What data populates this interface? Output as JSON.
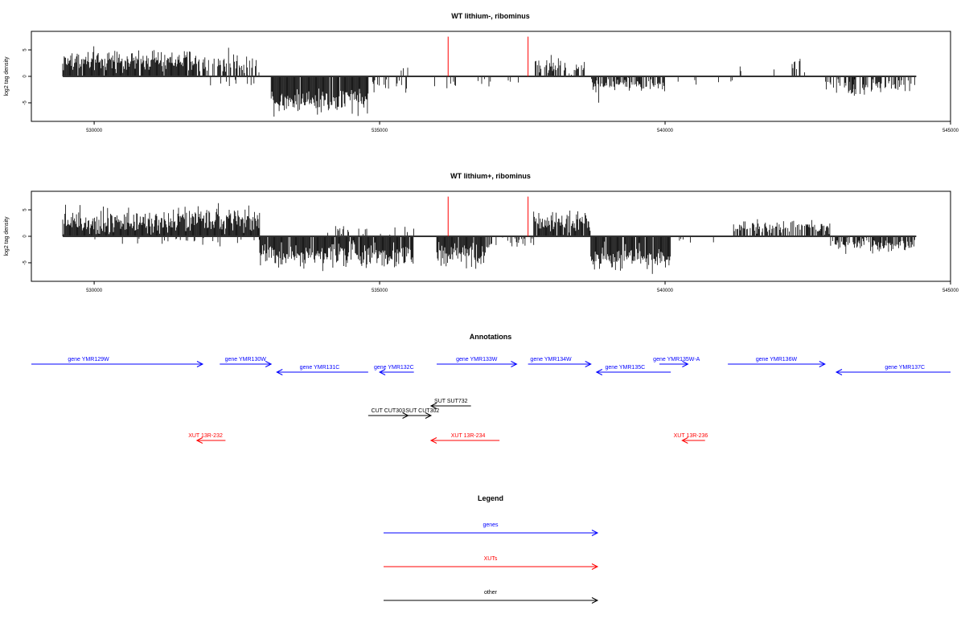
{
  "chart_data": [
    {
      "type": "bar",
      "title": "WT lithium-, ribominus",
      "ylabel": "log2 tag density",
      "xlabel": "",
      "xlim": [
        528900,
        545000
      ],
      "ylim": [
        -8.5,
        8.5
      ],
      "xticks": [
        530000,
        535000,
        540000,
        545000
      ],
      "xtick_labels": [
        "530000",
        "535000",
        "540000",
        "545000"
      ],
      "yticks": [
        -5,
        0,
        5
      ],
      "ytick_labels": [
        "-5",
        "0",
        "5"
      ],
      "baseline_range": [
        529450,
        544400
      ],
      "marker_color": "#ff0000",
      "markers": [
        {
          "x": 536200,
          "y": 7.5
        },
        {
          "x": 537600,
          "y": 7.5
        }
      ],
      "density_profile": [
        {
          "from": 529450,
          "to": 531800,
          "mean": 2.8,
          "spread": 1.5,
          "density": 0.95
        },
        {
          "from": 531800,
          "to": 532100,
          "mean": 2.2,
          "spread": 1.2,
          "density": 0.3
        },
        {
          "from": 532100,
          "to": 532900,
          "mean": 2.4,
          "spread": 1.6,
          "density": 0.45
        },
        {
          "from": 532000,
          "to": 532900,
          "mean": -1.2,
          "spread": 0.6,
          "density": 0.12
        },
        {
          "from": 533100,
          "to": 534800,
          "mean": -4.5,
          "spread": 1.8,
          "density": 0.95
        },
        {
          "from": 534800,
          "to": 535500,
          "mean": -1.8,
          "spread": 1.0,
          "density": 0.25
        },
        {
          "from": 535200,
          "to": 535500,
          "mean": 1.5,
          "spread": 0.8,
          "density": 0.12
        },
        {
          "from": 535900,
          "to": 537000,
          "mean": -1.4,
          "spread": 0.8,
          "density": 0.12
        },
        {
          "from": 537000,
          "to": 537600,
          "mean": -0.9,
          "spread": 0.6,
          "density": 0.06
        },
        {
          "from": 537700,
          "to": 538600,
          "mean": 2.0,
          "spread": 1.2,
          "density": 0.6
        },
        {
          "from": 538700,
          "to": 540000,
          "mean": -1.6,
          "spread": 0.8,
          "density": 0.7
        },
        {
          "from": 538700,
          "to": 538900,
          "mean": -3.5,
          "spread": 1.2,
          "density": 0.3
        },
        {
          "from": 540000,
          "to": 541200,
          "mean": -1.0,
          "spread": 0.5,
          "density": 0.05
        },
        {
          "from": 541200,
          "to": 542700,
          "mean": 1.2,
          "spread": 0.7,
          "density": 0.08
        },
        {
          "from": 542200,
          "to": 542400,
          "mean": 2.5,
          "spread": 0.5,
          "density": 0.2
        },
        {
          "from": 542800,
          "to": 544400,
          "mean": -1.7,
          "spread": 1.0,
          "density": 0.45
        },
        {
          "from": 543200,
          "to": 543500,
          "mean": -3.0,
          "spread": 0.8,
          "density": 0.4
        }
      ]
    },
    {
      "type": "bar",
      "title": "WT lithium+, ribominus",
      "ylabel": "log2 tag density",
      "xlabel": "",
      "xlim": [
        528900,
        545000
      ],
      "ylim": [
        -8.5,
        8.5
      ],
      "xticks": [
        530000,
        535000,
        540000,
        545000
      ],
      "xtick_labels": [
        "530000",
        "535000",
        "540000",
        "545000"
      ],
      "yticks": [
        -5,
        0,
        5
      ],
      "ytick_labels": [
        "-5",
        "0",
        "5"
      ],
      "baseline_range": [
        529450,
        544400
      ],
      "marker_color": "#ff0000",
      "markers": [
        {
          "x": 536200,
          "y": 7.5
        },
        {
          "x": 537600,
          "y": 7.5
        }
      ],
      "density_profile": [
        {
          "from": 529450,
          "to": 532900,
          "mean": 3.0,
          "spread": 1.8,
          "density": 1.0
        },
        {
          "from": 530000,
          "to": 533000,
          "mean": -0.8,
          "spread": 0.6,
          "density": 0.08
        },
        {
          "from": 532900,
          "to": 535600,
          "mean": -3.5,
          "spread": 1.8,
          "density": 0.95
        },
        {
          "from": 534000,
          "to": 535600,
          "mean": 1.2,
          "spread": 0.8,
          "density": 0.2
        },
        {
          "from": 536000,
          "to": 536900,
          "mean": -3.5,
          "spread": 1.6,
          "density": 0.95
        },
        {
          "from": 536900,
          "to": 537700,
          "mean": -1.4,
          "spread": 0.8,
          "density": 0.3
        },
        {
          "from": 537700,
          "to": 538700,
          "mean": 2.8,
          "spread": 1.5,
          "density": 0.9
        },
        {
          "from": 538700,
          "to": 540100,
          "mean": -4.0,
          "spread": 1.8,
          "density": 0.95
        },
        {
          "from": 540100,
          "to": 541200,
          "mean": -1.0,
          "spread": 0.6,
          "density": 0.06
        },
        {
          "from": 541200,
          "to": 542900,
          "mean": 1.8,
          "spread": 1.0,
          "density": 0.65
        },
        {
          "from": 542900,
          "to": 544400,
          "mean": -1.8,
          "spread": 1.0,
          "density": 0.7
        }
      ]
    }
  ],
  "annotations_title": "Annotations",
  "annotations": {
    "xlim": [
      528900,
      545000
    ],
    "features": [
      {
        "label": "gene YMR129W",
        "kind": "gene",
        "start": 528900,
        "end": 531900,
        "strand": "+",
        "row": 0,
        "label_pos": 529900
      },
      {
        "label": "gene YMR130W",
        "kind": "gene",
        "start": 532200,
        "end": 533100,
        "strand": "+",
        "row": 0,
        "label_pos": 532650
      },
      {
        "label": "gene YMR131C",
        "kind": "gene",
        "start": 533200,
        "end": 534800,
        "strand": "-",
        "row": 1,
        "label_pos": 533950
      },
      {
        "label": "gene YMR132C",
        "kind": "gene",
        "start": 535000,
        "end": 535600,
        "strand": "-",
        "row": 1,
        "label_pos": 535250
      },
      {
        "label": "gene YMR133W",
        "kind": "gene",
        "start": 536000,
        "end": 537400,
        "strand": "+",
        "row": 0,
        "label_pos": 536700
      },
      {
        "label": "gene YMR134W",
        "kind": "gene",
        "start": 537600,
        "end": 538700,
        "strand": "+",
        "row": 0,
        "label_pos": 538000
      },
      {
        "label": "gene YMR135C",
        "kind": "gene",
        "start": 538800,
        "end": 540100,
        "strand": "-",
        "row": 1,
        "label_pos": 539300
      },
      {
        "label": "gene YMR135W-A",
        "kind": "gene",
        "start": 539900,
        "end": 540400,
        "strand": "+",
        "row": 0,
        "label_pos": 540200
      },
      {
        "label": "gene YMR136W",
        "kind": "gene",
        "start": 541100,
        "end": 542800,
        "strand": "+",
        "row": 0,
        "label_pos": 541950
      },
      {
        "label": "gene YMR137C",
        "kind": "gene",
        "start": 543000,
        "end": 545000,
        "strand": "-",
        "row": 1,
        "label_pos": 544200
      },
      {
        "label": "SUT SUT732",
        "kind": "other",
        "start": 535900,
        "end": 536600,
        "strand": "-",
        "row": 2,
        "label_pos": 536250
      },
      {
        "label": "CUT CUT303",
        "kind": "other",
        "start": 534800,
        "end": 535500,
        "strand": "+",
        "row": 3,
        "label_pos": 535150
      },
      {
        "label": "SUT CUT302",
        "kind": "other",
        "start": 535400,
        "end": 535900,
        "strand": "+",
        "row": 3,
        "label_pos": 535750
      },
      {
        "label": "XUT 13R-232",
        "kind": "xut",
        "start": 531800,
        "end": 532300,
        "strand": "-",
        "row": 4,
        "label_pos": 531950
      },
      {
        "label": "XUT 13R-234",
        "kind": "xut",
        "start": 535900,
        "end": 537100,
        "strand": "-",
        "row": 4,
        "label_pos": 536550
      },
      {
        "label": "XUT 13R-236",
        "kind": "xut",
        "start": 540300,
        "end": 540700,
        "strand": "-",
        "row": 4,
        "label_pos": 540450
      }
    ]
  },
  "legend": {
    "title": "Legend",
    "items": [
      {
        "label": "genes",
        "kind": "gene"
      },
      {
        "label": "XUTs",
        "kind": "xut"
      },
      {
        "label": "other",
        "kind": "other"
      }
    ]
  },
  "colors": {
    "gene": "#0000ff",
    "xut": "#ff0000",
    "other": "#000000",
    "bars": "#000000",
    "baseline": "#333333",
    "frame": "#000000"
  }
}
